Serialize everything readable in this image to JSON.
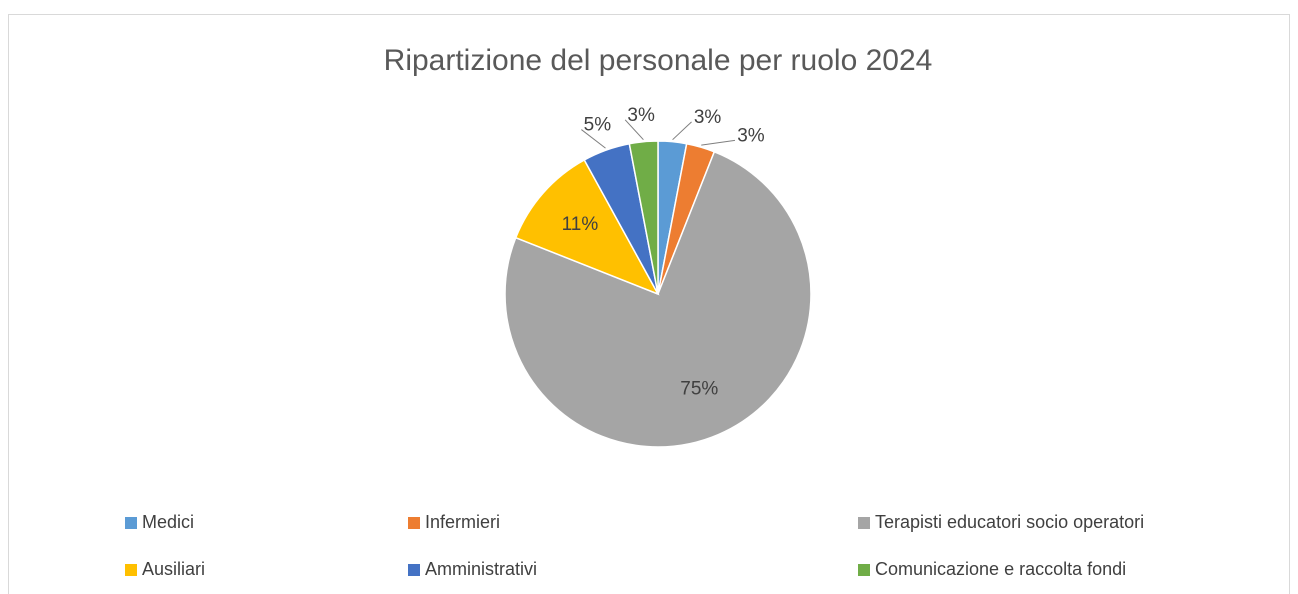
{
  "chart_data": {
    "type": "pie",
    "title": "Ripartizione del personale per ruolo 2024",
    "categories": [
      "Medici",
      "Infermieri",
      "Terapisti educatori socio operatori",
      "Ausiliari",
      "Amministrativi",
      "Comunicazione e raccolta fondi"
    ],
    "values": [
      3,
      3,
      75,
      11,
      5,
      3
    ],
    "value_labels": [
      "3%",
      "3%",
      "75%",
      "11%",
      "5%",
      "3%"
    ],
    "colors": [
      "#5b9bd5",
      "#ed7d31",
      "#a5a5a5",
      "#ffc000",
      "#4472c4",
      "#70ad47"
    ],
    "legend": "bottom"
  }
}
